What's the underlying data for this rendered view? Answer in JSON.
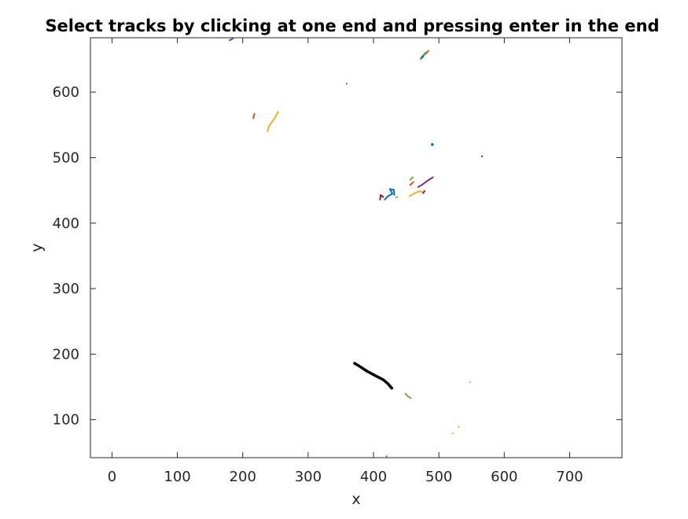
{
  "chart_data": {
    "type": "scatter",
    "title": "Select tracks by clicking at one end and pressing enter in the end",
    "xlabel": "x",
    "ylabel": "y",
    "xlim": [
      -33,
      780
    ],
    "ylim": [
      683,
      42
    ],
    "y_reversed": true,
    "x_ticks": [
      0,
      100,
      200,
      300,
      400,
      500,
      600,
      700
    ],
    "y_ticks": [
      100,
      200,
      300,
      400,
      500,
      600
    ],
    "x_tick_labels": [
      "0",
      "100",
      "200",
      "300",
      "400",
      "500",
      "600",
      "700"
    ],
    "y_tick_labels": [
      "100",
      "200",
      "300",
      "400",
      "500",
      "600"
    ],
    "grid": false,
    "legend": "none",
    "series": [
      {
        "color": "#000000",
        "width": 3.5,
        "points": [
          [
            371,
            186
          ],
          [
            378,
            182
          ],
          [
            390,
            174
          ],
          [
            405,
            166
          ],
          [
            415,
            161
          ],
          [
            422,
            155
          ],
          [
            428,
            148
          ]
        ],
        "selected": true
      },
      {
        "color": "#77ac30",
        "width": 2,
        "points": [
          [
            449,
            140
          ],
          [
            452,
            136
          ],
          [
            457,
            133
          ]
        ]
      },
      {
        "color": "#edb120",
        "width": 2,
        "points": [
          [
            521,
            79
          ]
        ]
      },
      {
        "color": "#edb120",
        "width": 2,
        "points": [
          [
            530,
            89
          ]
        ]
      },
      {
        "color": "#4dbeee",
        "width": 1.5,
        "points": [
          [
            548,
            157
          ]
        ]
      },
      {
        "color": "#7e2f8e",
        "width": 1.5,
        "points": [
          [
            420,
            44
          ]
        ]
      },
      {
        "color": "#a2142f",
        "width": 2,
        "points": [
          [
            410,
            436
          ],
          [
            411,
            443
          ],
          [
            415,
            440
          ]
        ]
      },
      {
        "color": "#0072bd",
        "width": 2,
        "points": [
          [
            417,
            436
          ],
          [
            422,
            441
          ],
          [
            429,
            445
          ],
          [
            425,
            452
          ],
          [
            431,
            451
          ],
          [
            432,
            443
          ]
        ]
      },
      {
        "color": "#77ac30",
        "width": 1.5,
        "points": [
          [
            434,
            439
          ],
          [
            437,
            440
          ]
        ]
      },
      {
        "color": "#edb120",
        "width": 2,
        "points": [
          [
            455,
            441
          ],
          [
            458,
            443
          ],
          [
            466,
            447
          ],
          [
            471,
            449
          ],
          [
            475,
            447
          ]
        ]
      },
      {
        "color": "#a2142f",
        "width": 2,
        "points": [
          [
            476,
            446
          ],
          [
            478,
            449
          ]
        ]
      },
      {
        "color": "#7e2f8e",
        "width": 2,
        "points": [
          [
            468,
            455
          ],
          [
            475,
            459
          ],
          [
            483,
            465
          ],
          [
            491,
            470
          ]
        ]
      },
      {
        "color": "#d95319",
        "width": 2,
        "points": [
          [
            456,
            458
          ],
          [
            461,
            463
          ]
        ]
      },
      {
        "color": "#77ac30",
        "width": 2,
        "points": [
          [
            456,
            466
          ],
          [
            460,
            470
          ]
        ]
      },
      {
        "color": "#0072bd",
        "width": 3,
        "points": [
          [
            490,
            520
          ]
        ]
      },
      {
        "color": "#7e2f8e",
        "width": 2,
        "points": [
          [
            566,
            502
          ]
        ]
      },
      {
        "color": "#edb120",
        "width": 2,
        "points": [
          [
            238,
            540
          ],
          [
            240,
            548
          ],
          [
            245,
            555
          ],
          [
            250,
            562
          ],
          [
            254,
            570
          ]
        ]
      },
      {
        "color": "#d95319",
        "width": 2,
        "points": [
          [
            216,
            560
          ],
          [
            218,
            567
          ]
        ]
      },
      {
        "color": "#0072bd",
        "width": 1.5,
        "points": [
          [
            359,
            613
          ]
        ]
      },
      {
        "color": "#edb120",
        "width": 2,
        "points": [
          [
            472,
            650
          ],
          [
            477,
            655
          ]
        ]
      },
      {
        "color": "#0072bd",
        "width": 2.5,
        "points": [
          [
            473,
            652
          ],
          [
            480,
            660
          ]
        ]
      },
      {
        "color": "#77ac30",
        "width": 2,
        "points": [
          [
            477,
            656
          ],
          [
            482,
            661
          ]
        ]
      },
      {
        "color": "#d95319",
        "width": 2,
        "points": [
          [
            480,
            659
          ],
          [
            484,
            663
          ]
        ]
      },
      {
        "color": "#7e2f8e",
        "width": 2,
        "points": [
          [
            180,
            679
          ],
          [
            185,
            682
          ]
        ]
      }
    ]
  }
}
